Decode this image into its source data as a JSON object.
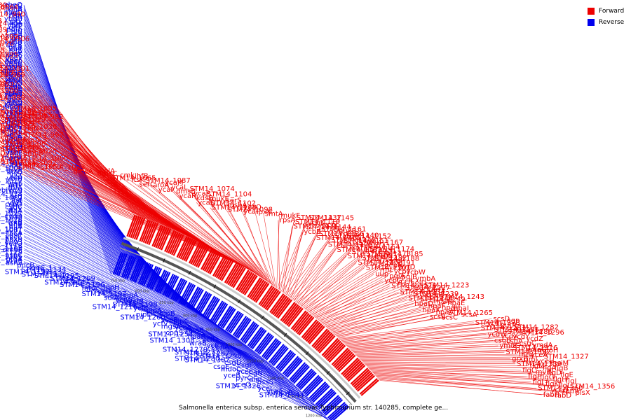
{
  "title": "Salmonella enterica subsp. enterica serovar Typhimurium str. 140285, complete ge...",
  "legend": {
    "forward": {
      "label": "Forward",
      "color": "#ee0000"
    },
    "reverse": {
      "label": "Reverse",
      "color": "#0000ee"
    }
  },
  "chromosome_ticks": [
    "750 kbp",
    "800 kbp",
    "850 kbp",
    "900 kbp",
    "950 kbp",
    "1000 kbp",
    "1050 kbp",
    "1100 kbp",
    "1150 kbp",
    "1200 kbp"
  ],
  "reverse_genes": [
    "ybeQ",
    "hscC",
    "asnB",
    "rihA",
    "nagD",
    "fur",
    "fldA",
    "ybgH",
    "gltL",
    "nagA",
    "ybfF",
    "gltK",
    "potE",
    "gltJ",
    "citA",
    "kdpE",
    "gltI",
    "citB",
    "kdpB",
    "abrB",
    "gltA",
    "lnt",
    "fldA",
    "ybeX",
    "ybfE",
    "ybeY",
    "speF",
    "STM14_0860",
    "ybgR",
    "galK",
    "STM14_0873",
    "gpmA",
    "ybhC",
    "STM14_0879",
    "galM",
    "ybhA",
    "phoL",
    "kdpD",
    "nagC",
    "kdpA",
    "ybgS",
    "galT",
    "ybhN",
    "STM14_0885",
    "galE",
    "bioA",
    "ybhN",
    "STM14_0886",
    "modF",
    "ybiI",
    "STM14_0888",
    "ybhP",
    "ybiO",
    "ybiL",
    "STM14_0897",
    "ybhR",
    "glnQ",
    "ybiS",
    "STM14_0902",
    "STM14_946",
    "glnP",
    "pflE",
    "deoR",
    "ybiU",
    "modE",
    "ybhS",
    "glnH",
    "moeB",
    "ybiG",
    "ybhF",
    "dps",
    "moeA",
    "artM",
    "artJ",
    "STM14_949",
    "ybiF",
    "STM14_1006",
    "grxA",
    "artQ",
    "hcr",
    "hcp",
    "ybiH",
    "STM14_1017",
    "ybjE",
    "artP",
    "infA",
    "ybiV(2)",
    "STM14_1018",
    "STM14_974",
    "artI",
    "STM14_1082",
    "aat",
    "ybiT",
    "cspD",
    "cydC",
    "ybjX",
    "ltaA",
    "STM14_1021",
    "cydD",
    "STM14_1038",
    "STM14_1076",
    "trxB",
    "pflB",
    "pflA",
    "STM14_1047",
    "STM14_1081",
    "focA",
    "STM14_1097",
    "ybcC",
    "poxB",
    "STM14_1093",
    "ycaO",
    "STM14_1118",
    "STM14_1108",
    "ompF",
    "STM14_1129",
    "aspC",
    "STM14_1165",
    "gtgA",
    "STM14_1133",
    "asnS",
    "pncB",
    "sodC_1",
    "STM14_1134",
    "STM14_1192",
    "STM14_1135",
    "STM14_1195",
    "STM14_1209",
    "ycfS",
    "STM14_1147",
    "STM14_1196",
    "lonH",
    "fabA",
    "ycfF",
    "STM14_1197",
    "ompA",
    "sulA",
    "ycfW",
    "ycfB",
    "STM14_1198",
    "STM14_1216",
    "ycfK",
    "pipA",
    "pipB",
    "pipD",
    "STM14_1260",
    "sopB",
    "pipC",
    "ycfV",
    "mgsA",
    "yccA",
    "hpaB",
    "copS",
    "STM14_1254",
    "hpaR",
    "ycfD",
    "STM14_1308",
    "wraB",
    "ycfI",
    "cbpA",
    "STM14_1279",
    "STM14_1277",
    "STM14_1287",
    "STM14_1298",
    "STM14_1280",
    "STM14_1307",
    "csgD",
    "csgF",
    "csgE",
    "mdoC",
    "yceL",
    "flgN",
    "yceB",
    "pyrC",
    "dinI",
    "bssS",
    "yceO",
    "STM14_1326",
    "yceI",
    "yceE",
    "msyB",
    "STM14_1344"
  ],
  "forward_genes": [
    "phrB",
    "STM14_0839",
    "STM14_0864",
    "modA",
    "hutU",
    "uvrB",
    "moaC",
    "STM14_940",
    "STM14_0843",
    "cydB",
    "pnuC",
    "dcoB",
    "STM14_0903",
    "STM14_0924",
    "sdhB",
    "cydA",
    "nadA",
    "STM14_0889",
    "hutC",
    "bioD_1",
    "STM14_936",
    "tolR",
    "STM14_0887",
    "STM14_0906",
    "slrP",
    "ybhL",
    "STM14_970",
    "aroG",
    "STM14_0894",
    "hutG",
    "bioC",
    "moaB",
    "STM14_958",
    "ompX",
    "STM14_0895",
    "hutH",
    "bioF",
    "moaA",
    "ybhQ",
    "ybiB",
    "STM14_956",
    "STM14_995",
    "dacC",
    "STM14_1001",
    "hutI",
    "bioB",
    "STM14_927",
    "STM14_969",
    "ybiJ",
    "ybiK",
    "ybiC",
    "ybiD",
    "STM14_1007",
    "STM14_0925",
    "STM14_952",
    "dinG",
    "STM14_967",
    "ybiV(1)",
    "STM14_1000",
    "potI",
    "STM14_939",
    "STM14_961",
    "ybiT",
    "STM14_989",
    "mdaA",
    "ybjN",
    "potH",
    "rhlE",
    "ybiN",
    "STM14_986",
    "STM14_1005",
    "ybjC",
    "ybjO",
    "STM14_1037",
    "STM14_965",
    "STM14_982",
    "STM14_999",
    "STM14_1019",
    "ybiX",
    "bssR",
    "STM14_1009",
    "potF",
    "STM14_1036",
    "ybjN",
    "ybjM",
    "potD",
    "ybiA",
    "STM14_997",
    "mdfA",
    "clpS",
    "clpA",
    "tnpA_3",
    "STM14_979",
    "STM14_1008",
    "rumB",
    "rimK",
    "STM14_1034",
    "STM14_1061",
    "STM14_1020",
    "ompB",
    "ybjD",
    "ybjY",
    "ybjZ",
    "STM14_1060",
    "uIaA_1",
    "STM14_1055",
    "STM14_1092",
    "ybjR",
    "STM14_1053",
    "STM14_1073",
    "lrp",
    "lolA",
    "dmsA",
    "dmsC",
    "cmk",
    "ihfB",
    "STM14_1065",
    "ftsK",
    "STM14_1087",
    "ycaM",
    "serC",
    "aroA",
    "ycaL",
    "STM14_1074",
    "ycaI",
    "dmsB",
    "ycaP",
    "STM14_1104",
    "ycaR",
    "kdsB",
    "mukE",
    "serS",
    "ycaD",
    "STM14_1102",
    "msbA",
    "ycaQ",
    "STM14_1138",
    "STM14_1098",
    "ycaI",
    "lpxK",
    "smtA",
    "mukF",
    "STM14_1137",
    "STM14_1145",
    "rpsA",
    "STM14_1119",
    "ycbK",
    "ycbL",
    "STM14_1131",
    "STM14_1144",
    "STM14_1161",
    "mukB",
    "ycbB",
    "STM14_1136",
    "STM14_1140",
    "STM14_1152",
    "STM14_1169",
    "STM14_1142",
    "STM14_1151",
    "STM14_1167",
    "STM14_1175",
    "STM14_1157",
    "STM14_1164",
    "STM14_1174",
    "STM14_1183",
    "STM14_1171",
    "STM14_1173",
    "STM14_1185",
    "STM14_1190",
    "STM14_1182",
    "STM14_1188",
    "ssel",
    "STM14_1203",
    "STM14_1191",
    "pepN",
    "pyrD",
    "STM14_1201",
    "rmf",
    "ycbY",
    "ycbW",
    "uup",
    "pqiA",
    "pqiB",
    "ymbA",
    "ycbG",
    "yccR",
    "helD",
    "STM14_1223",
    "STM14_1226",
    "STM14_1227",
    "yccX",
    "orfX",
    "STM14_1234",
    "STM14_1239",
    "copR",
    "STM14_1243",
    "STM14_1244",
    "STM14_1249",
    "hpaG",
    "hpaE",
    "hpaD",
    "hpaF",
    "hpaH",
    "hpaI",
    "hpaX",
    "hpaA",
    "STM14_1265",
    "scsA",
    "scsB",
    "scsC",
    "scsD",
    "agp",
    "STM14_1273",
    "ycdF",
    "putP",
    "STM14_1282",
    "STM14_1283",
    "STM14_1285",
    "STM14_1286",
    "STM14_1296",
    "ycdW",
    "ycdX",
    "ycdY",
    "ycdZ",
    "csgB",
    "csgA",
    "csgC",
    "ymdA",
    "ymdC",
    "STM14_1316",
    "mdoG",
    "mdoH",
    "STM14_1322",
    "htrB",
    "yceA",
    "STM14_1327",
    "grxB",
    "rimJ",
    "yceH",
    "mviM",
    "STM14_1339",
    "flgM",
    "flgA",
    "flgB",
    "flgC",
    "mviN",
    "flgD",
    "flgE",
    "flgF",
    "flgG",
    "flgH",
    "flgI",
    "flgJ",
    "flgK",
    "flgL",
    "STM14_1356",
    "STM14_1360",
    "yceD",
    "rpmF",
    "plsX",
    "fabH",
    "fabD"
  ]
}
